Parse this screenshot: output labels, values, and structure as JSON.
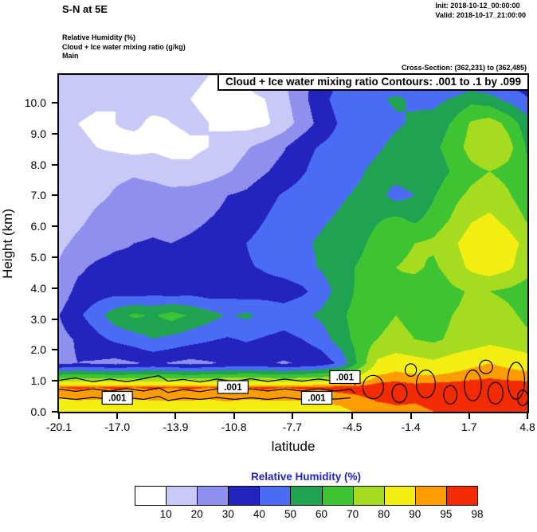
{
  "header": {
    "title": "S-N at 5E",
    "init_label": "Init: 2018-10-12_00:00:00",
    "valid_label": "Valid: 2018-10-17_21:00:00",
    "field_line1": "Relative Humidity  (%)",
    "field_line2": "Cloud + Ice water mixing ratio  (g/kg)",
    "field_line3": "Main",
    "cross_section": "Cross-Section: (362,231) to (362,485)"
  },
  "chart_data": {
    "type": "heatmap",
    "banner": "Cloud + Ice water mixing ratio Contours: .001 to .1 by .099",
    "xlabel": "latitude",
    "ylabel": "Height (km)",
    "xlim": [
      -20.1,
      4.8
    ],
    "ylim": [
      0,
      10.9
    ],
    "xticks": [
      -20.1,
      -17.0,
      -13.9,
      -10.8,
      -7.7,
      -4.5,
      -1.4,
      1.7,
      4.8
    ],
    "xtick_labels": [
      "-20.1",
      "-17.0",
      "-13.9",
      "-10.8",
      "-7.7",
      "-4.5",
      "-1.4",
      "1.7",
      "4.8"
    ],
    "yticks": [
      0,
      1,
      2,
      3,
      4,
      5,
      6,
      7,
      8,
      9,
      10
    ],
    "ytick_labels": [
      "0.0",
      "1.0",
      "2.0",
      "3.0",
      "4.0",
      "5.0",
      "6.0",
      "7.0",
      "8.0",
      "9.0",
      "10.0"
    ],
    "colorbar": {
      "title": "Relative Humidity  (%)",
      "title_color": "#2222cc",
      "levels": [
        10,
        20,
        30,
        40,
        50,
        60,
        70,
        80,
        90,
        95,
        98
      ],
      "labels": [
        "10",
        "20",
        "30",
        "40",
        "50",
        "60",
        "70",
        "80",
        "90",
        "95",
        "98"
      ],
      "colors": [
        "#ffffff",
        "#c9c9f7",
        "#8f8fee",
        "#2323be",
        "#4a6cf5",
        "#1fa352",
        "#3ec432",
        "#a6dc1f",
        "#f2ee12",
        "#ff9d00",
        "#f22b00"
      ]
    },
    "rh_grid": {
      "ny": 15,
      "nx": 26,
      "note": "rows bottom(0 km) to top(10.9 km), cols lat -20.1 to 4.8, RH in %",
      "values": [
        [
          84,
          85,
          85,
          86,
          85,
          85,
          86,
          85,
          85,
          86,
          85,
          85,
          86,
          85,
          86,
          88,
          91,
          93,
          94,
          94,
          95,
          95,
          96,
          96,
          96,
          97
        ],
        [
          95,
          96,
          95,
          96,
          95,
          96,
          95,
          96,
          95,
          96,
          95,
          96,
          95,
          96,
          96,
          97,
          97,
          98,
          98,
          97,
          98,
          98,
          98,
          98,
          98,
          98
        ],
        [
          28,
          30,
          29,
          27,
          29,
          31,
          29,
          27,
          29,
          31,
          33,
          31,
          29,
          31,
          34,
          42,
          62,
          82,
          86,
          84,
          82,
          85,
          88,
          90,
          88,
          86
        ],
        [
          27,
          31,
          37,
          42,
          45,
          50,
          47,
          44,
          41,
          39,
          41,
          39,
          37,
          40,
          45,
          55,
          64,
          70,
          72,
          70,
          68,
          72,
          74,
          77,
          75,
          72
        ],
        [
          30,
          38,
          46,
          56,
          62,
          59,
          64,
          59,
          54,
          49,
          52,
          47,
          45,
          48,
          52,
          58,
          64,
          68,
          70,
          68,
          65,
          70,
          72,
          75,
          72,
          68
        ],
        [
          24,
          33,
          35,
          36,
          34,
          36,
          34,
          36,
          34,
          36,
          34,
          36,
          35,
          38,
          45,
          54,
          62,
          66,
          68,
          65,
          62,
          68,
          71,
          70,
          68,
          65
        ],
        [
          21,
          28,
          32,
          34,
          33,
          34,
          33,
          35,
          37,
          39,
          39,
          41,
          44,
          47,
          51,
          56,
          61,
          67,
          70,
          72,
          68,
          75,
          82,
          86,
          82,
          74
        ],
        [
          18,
          22,
          25,
          28,
          30,
          31,
          30,
          32,
          34,
          37,
          40,
          44,
          47,
          49,
          51,
          54,
          57,
          64,
          67,
          70,
          72,
          78,
          85,
          88,
          84,
          77
        ],
        [
          15,
          18,
          22,
          25,
          25,
          27,
          25,
          27,
          30,
          32,
          35,
          40,
          44,
          47,
          49,
          51,
          54,
          59,
          62,
          58,
          64,
          71,
          79,
          82,
          77,
          69
        ],
        [
          14,
          16,
          18,
          21,
          23,
          24,
          23,
          25,
          27,
          30,
          32,
          37,
          41,
          44,
          47,
          49,
          51,
          54,
          46,
          50,
          59,
          67,
          72,
          75,
          71,
          64
        ],
        [
          12,
          14,
          16,
          18,
          19,
          17,
          14,
          12,
          15,
          19,
          24,
          29,
          34,
          39,
          44,
          47,
          49,
          52,
          55,
          57,
          54,
          61,
          67,
          70,
          67,
          61
        ],
        [
          10,
          12,
          10,
          8,
          6,
          8,
          6,
          8,
          10,
          14,
          19,
          24,
          29,
          37,
          41,
          44,
          47,
          49,
          52,
          55,
          58,
          64,
          74,
          80,
          74,
          59
        ],
        [
          12,
          10,
          8,
          10,
          12,
          8,
          10,
          12,
          10,
          8,
          6,
          8,
          15,
          24,
          34,
          41,
          44,
          47,
          49,
          51,
          54,
          61,
          71,
          75,
          67,
          54
        ],
        [
          15,
          14,
          12,
          10,
          12,
          14,
          12,
          10,
          8,
          6,
          8,
          10,
          17,
          27,
          37,
          44,
          47,
          49,
          51,
          49,
          47,
          51,
          57,
          54,
          47,
          41
        ],
        [
          17,
          16,
          15,
          14,
          15,
          16,
          14,
          12,
          10,
          10,
          12,
          15,
          20,
          27,
          34,
          39,
          44,
          47,
          44,
          41,
          37,
          35,
          37,
          35,
          34,
          32
        ]
      ]
    },
    "contour_lines": [
      [
        [
          -20.1,
          1.02
        ],
        [
          -19.2,
          1.09
        ],
        [
          -18.3,
          0.97
        ],
        [
          -17.4,
          1.06
        ],
        [
          -16.5,
          0.97
        ],
        [
          -15.6,
          1.07
        ],
        [
          -14.8,
          1.17
        ],
        [
          -14.3,
          0.99
        ],
        [
          -13.5,
          1.05
        ],
        [
          -12.6,
          0.96
        ],
        [
          -11.7,
          1.06
        ],
        [
          -10.8,
          0.98
        ],
        [
          -9.9,
          1.07
        ],
        [
          -9.0,
          0.98
        ],
        [
          -8.1,
          1.06
        ],
        [
          -7.2,
          0.99
        ],
        [
          -6.3,
          1.06
        ],
        [
          -5.6,
          1.0
        ],
        [
          -5.1,
          1.18
        ],
        [
          -4.8,
          1.32
        ],
        [
          -4.5,
          1.12
        ],
        [
          -4.35,
          0.85
        ]
      ],
      [
        [
          -20.1,
          0.73
        ],
        [
          -19.2,
          0.66
        ],
        [
          -18.3,
          0.74
        ],
        [
          -17.4,
          0.67
        ],
        [
          -16.5,
          0.75
        ],
        [
          -15.6,
          0.67
        ],
        [
          -14.8,
          0.77
        ],
        [
          -14.3,
          0.62
        ],
        [
          -13.5,
          0.72
        ],
        [
          -12.6,
          0.65
        ],
        [
          -11.7,
          0.74
        ],
        [
          -10.8,
          0.66
        ],
        [
          -9.9,
          0.74
        ],
        [
          -9.0,
          0.67
        ],
        [
          -8.1,
          0.74
        ],
        [
          -7.2,
          0.67
        ],
        [
          -6.3,
          0.74
        ],
        [
          -5.4,
          0.67
        ],
        [
          -4.6,
          0.73
        ],
        [
          -4.35,
          0.6
        ]
      ],
      [
        [
          -20.1,
          0.45
        ],
        [
          -19.2,
          0.4
        ],
        [
          -18.3,
          0.46
        ],
        [
          -17.4,
          0.41
        ],
        [
          -16.5,
          0.46
        ],
        [
          -15.6,
          0.4
        ],
        [
          -14.8,
          0.5
        ],
        [
          -14.3,
          0.36
        ],
        [
          -13.5,
          0.44
        ],
        [
          -12.6,
          0.4
        ],
        [
          -11.7,
          0.46
        ],
        [
          -10.8,
          0.4
        ],
        [
          -9.9,
          0.45
        ],
        [
          -9.0,
          0.4
        ],
        [
          -8.1,
          0.46
        ],
        [
          -7.2,
          0.4
        ],
        [
          -6.3,
          0.45
        ],
        [
          -5.4,
          0.41
        ],
        [
          -4.6,
          0.45
        ]
      ]
    ],
    "contour_loops": [
      {
        "lat": -3.4,
        "km": 0.8,
        "rlat": 0.55,
        "rkm": 0.38
      },
      {
        "lat": -2.0,
        "km": 0.6,
        "rlat": 0.4,
        "rkm": 0.3
      },
      {
        "lat": -0.6,
        "km": 0.9,
        "rlat": 0.5,
        "rkm": 0.45
      },
      {
        "lat": 0.7,
        "km": 0.55,
        "rlat": 0.35,
        "rkm": 0.3
      },
      {
        "lat": 1.9,
        "km": 0.85,
        "rlat": 0.45,
        "rkm": 0.5
      },
      {
        "lat": 3.1,
        "km": 0.6,
        "rlat": 0.4,
        "rkm": 0.35
      },
      {
        "lat": 4.2,
        "km": 1.0,
        "rlat": 0.45,
        "rkm": 0.6
      },
      {
        "lat": 4.55,
        "km": 0.45,
        "rlat": 0.28,
        "rkm": 0.25
      },
      {
        "lat": -1.4,
        "km": 1.35,
        "rlat": 0.3,
        "rkm": 0.2
      },
      {
        "lat": 2.6,
        "km": 1.45,
        "rlat": 0.35,
        "rkm": 0.22
      }
    ],
    "contour_labels": [
      {
        "text": ".001",
        "lat": -17.0,
        "km": 0.45
      },
      {
        "text": ".001",
        "lat": -10.85,
        "km": 0.8
      },
      {
        "text": ".001",
        "lat": -6.4,
        "km": 0.45
      },
      {
        "text": ".001",
        "lat": -4.9,
        "km": 1.12
      }
    ]
  }
}
